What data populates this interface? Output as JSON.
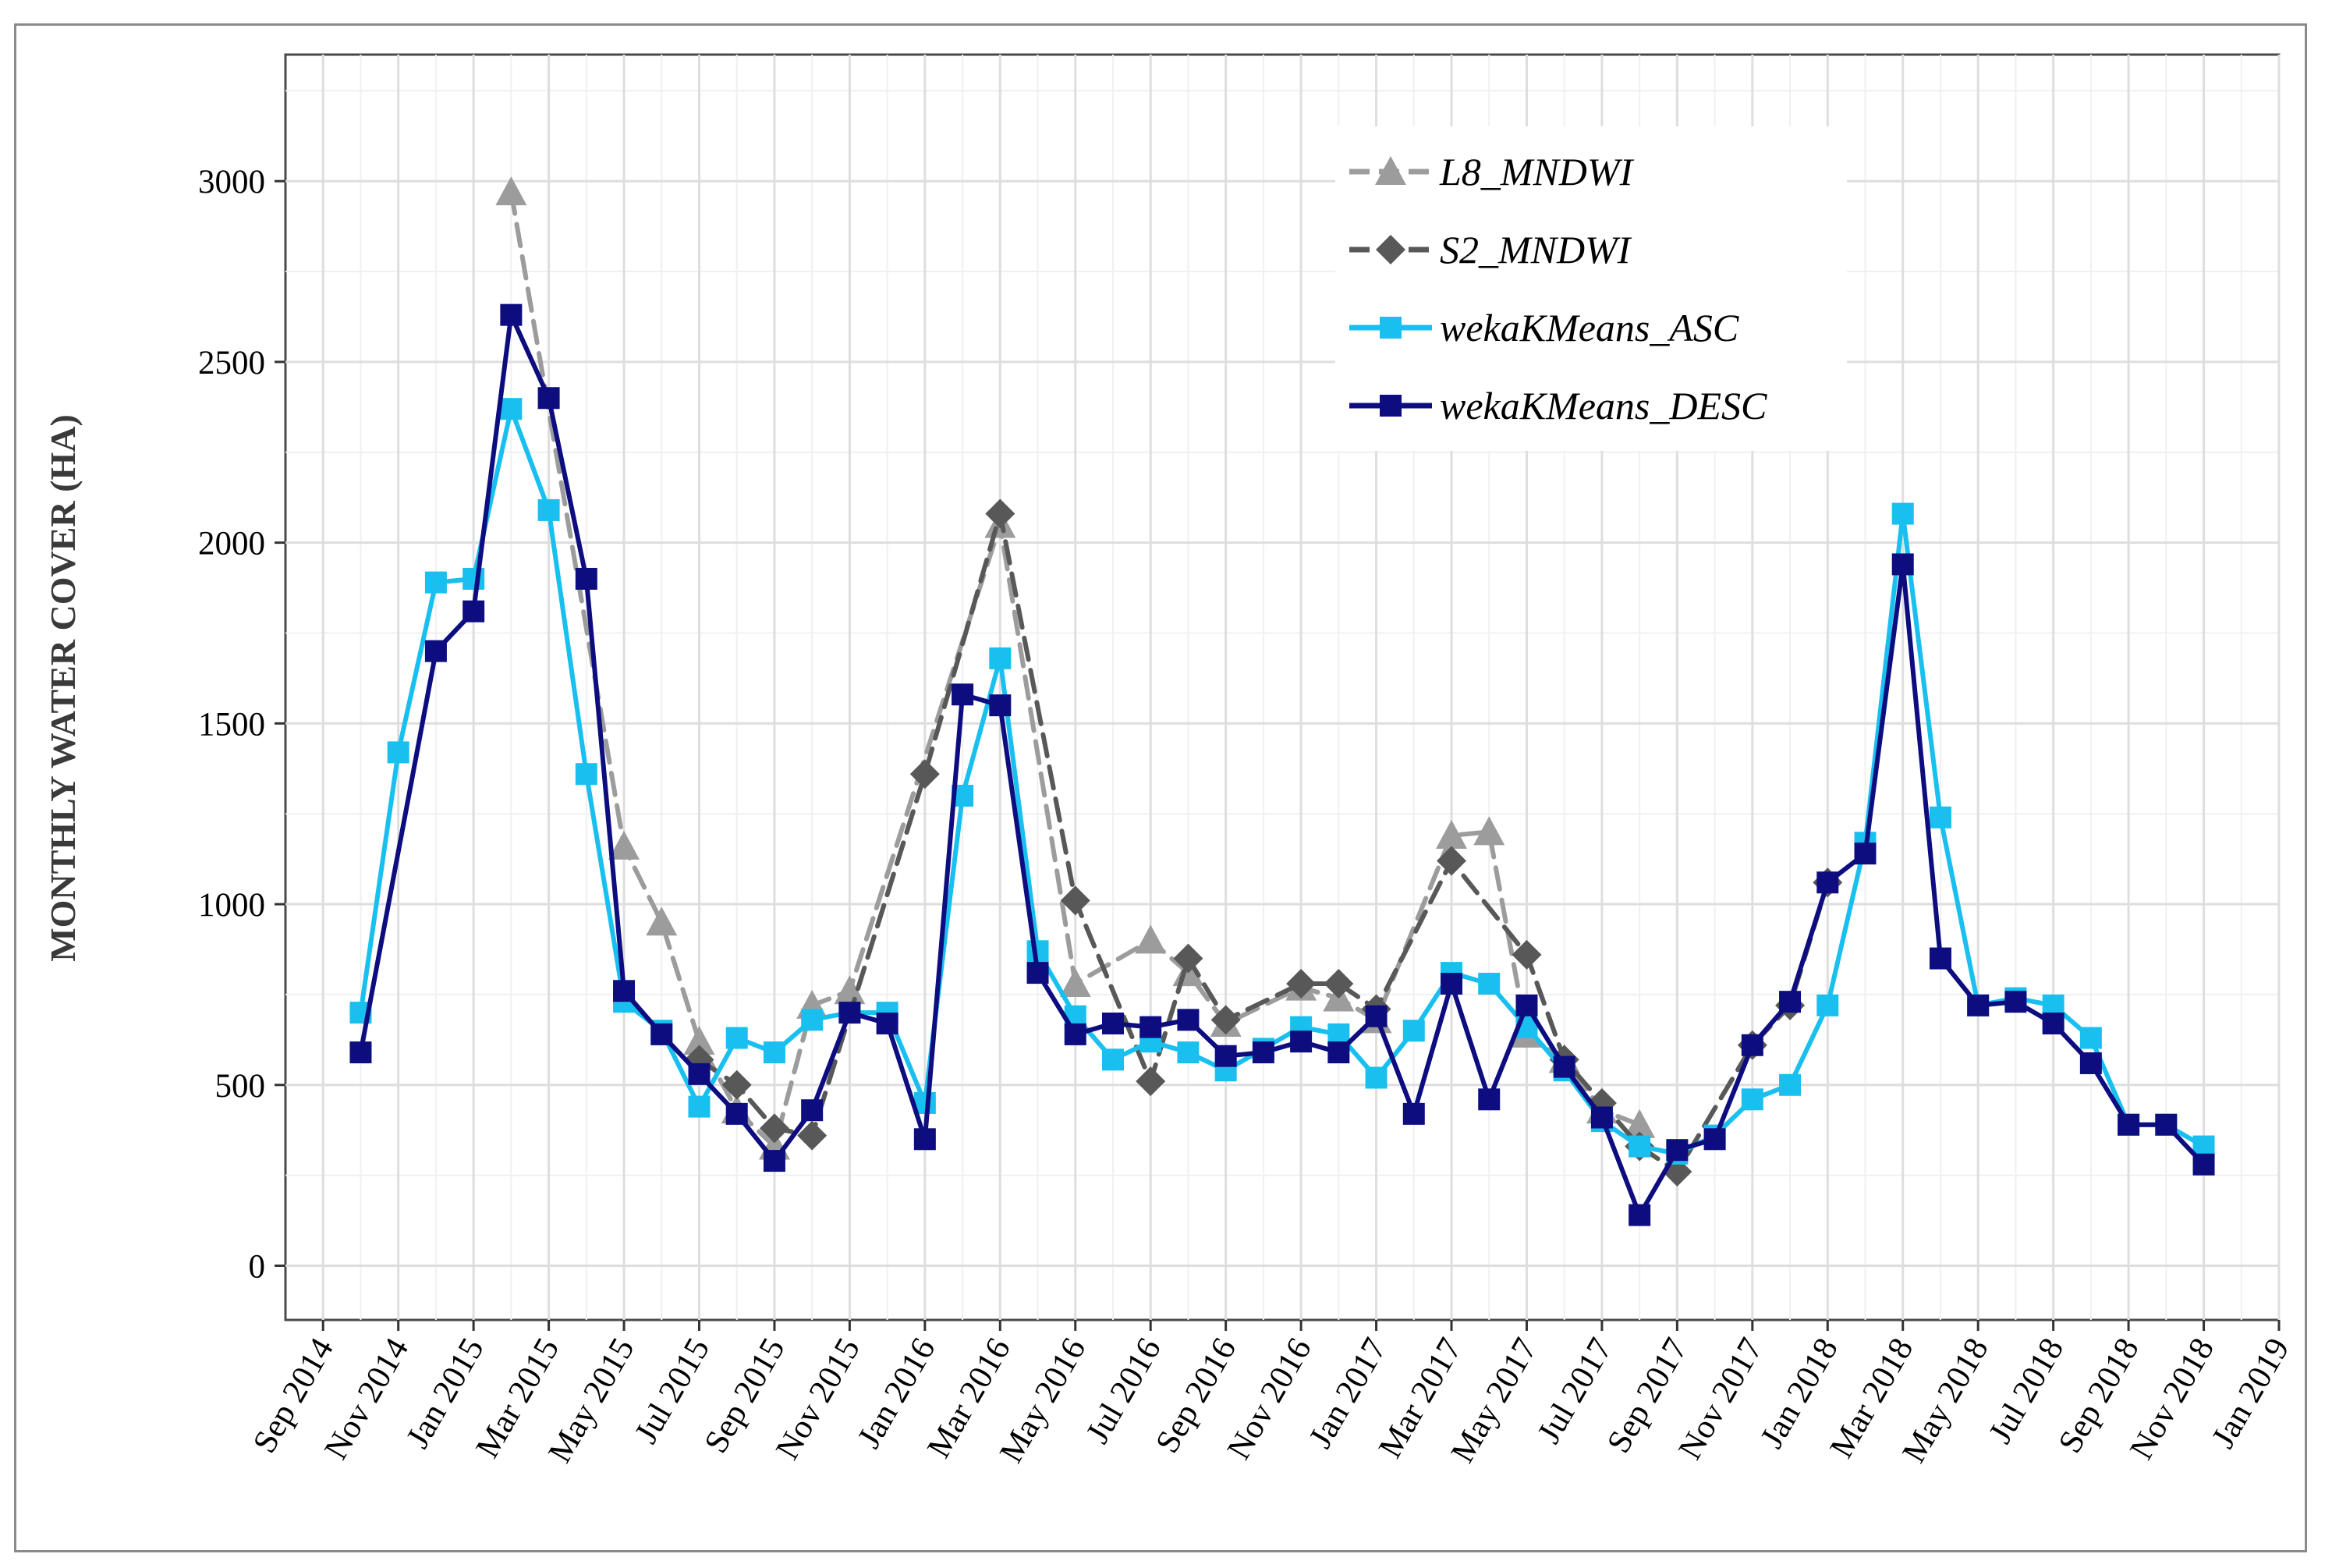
{
  "chart_data": {
    "type": "line",
    "title": "",
    "xlabel": "",
    "ylabel": "MONTHLY WATER COVER (HA)",
    "ylim": [
      -150,
      3350
    ],
    "xlim": [
      "Aug 2014",
      "Jan 2019"
    ],
    "y_ticks": [
      0,
      500,
      1000,
      1500,
      2000,
      2500,
      3000
    ],
    "y_tick_labels": [
      "0",
      "500",
      "1000",
      "1500",
      "2000",
      "2500",
      "3000"
    ],
    "x_tick_labels": [
      "Sep 2014",
      "Nov 2014",
      "Jan 2015",
      "Mar 2015",
      "May 2015",
      "Jul 2015",
      "Sep 2015",
      "Nov 2015",
      "Jan 2016",
      "Mar 2016",
      "May 2016",
      "Jul 2016",
      "Sep 2016",
      "Nov 2016",
      "Jan 2017",
      "Mar 2017",
      "May 2017",
      "Jul 2017",
      "Sep 2017",
      "Nov 2017",
      "Jan 2018",
      "Mar 2018",
      "May 2018",
      "Jul 2018",
      "Sep 2018",
      "Nov 2018",
      "Jan 2019"
    ],
    "legend_position": "top-right",
    "grid": true,
    "series": [
      {
        "name": "L8_MNDWI",
        "color": "#9c9c9c",
        "marker": "triangle",
        "dashed": true,
        "points": [
          [
            "2015-02",
            2970
          ],
          [
            "2015-05",
            1160
          ],
          [
            "2015-06",
            950
          ],
          [
            "2015-07",
            620
          ],
          [
            "2015-08",
            430
          ],
          [
            "2015-09",
            330
          ],
          [
            "2015-10",
            720
          ],
          [
            "2015-11",
            760
          ],
          [
            "2016-03",
            2050
          ],
          [
            "2016-05",
            780
          ],
          [
            "2016-07",
            900
          ],
          [
            "2016-08",
            810
          ],
          [
            "2016-09",
            670
          ],
          [
            "2016-11",
            770
          ],
          [
            "2016-12",
            740
          ],
          [
            "2017-01",
            680
          ],
          [
            "2017-03",
            1190
          ],
          [
            "2017-04",
            1200
          ],
          [
            "2017-05",
            640
          ],
          [
            "2017-06",
            570
          ],
          [
            "2017-07",
            430
          ],
          [
            "2017-08",
            390
          ]
        ]
      },
      {
        "name": "S2_MNDWI",
        "color": "#585858",
        "marker": "diamond",
        "dashed": true,
        "points": [
          [
            "2015-07",
            570
          ],
          [
            "2015-08",
            500
          ],
          [
            "2015-09",
            380
          ],
          [
            "2015-10",
            360
          ],
          [
            "2016-01",
            1360
          ],
          [
            "2016-03",
            2080
          ],
          [
            "2016-05",
            1010
          ],
          [
            "2016-07",
            510
          ],
          [
            "2016-08",
            850
          ],
          [
            "2016-09",
            680
          ],
          [
            "2016-11",
            780
          ],
          [
            "2016-12",
            780
          ],
          [
            "2017-01",
            710
          ],
          [
            "2017-03",
            1120
          ],
          [
            "2017-05",
            860
          ],
          [
            "2017-06",
            570
          ],
          [
            "2017-07",
            450
          ],
          [
            "2017-08",
            330
          ],
          [
            "2017-09",
            260
          ],
          [
            "2017-11",
            610
          ],
          [
            "2017-12",
            720
          ],
          [
            "2018-01",
            1060
          ]
        ]
      },
      {
        "name": "wekaKMeans_ASC",
        "color": "#19c0ef",
        "marker": "square",
        "dashed": false,
        "points": [
          [
            "2014-10",
            700
          ],
          [
            "2014-11",
            1420
          ],
          [
            "2014-12",
            1890
          ],
          [
            "2015-01",
            1900
          ],
          [
            "2015-02",
            2370
          ],
          [
            "2015-03",
            2090
          ],
          [
            "2015-04",
            1360
          ],
          [
            "2015-05",
            730
          ],
          [
            "2015-06",
            650
          ],
          [
            "2015-07",
            440
          ],
          [
            "2015-08",
            630
          ],
          [
            "2015-09",
            590
          ],
          [
            "2015-10",
            680
          ],
          [
            "2015-11",
            700
          ],
          [
            "2015-12",
            700
          ],
          [
            "2016-01",
            450
          ],
          [
            "2016-02",
            1300
          ],
          [
            "2016-03",
            1680
          ],
          [
            "2016-04",
            870
          ],
          [
            "2016-05",
            690
          ],
          [
            "2016-06",
            570
          ],
          [
            "2016-07",
            620
          ],
          [
            "2016-08",
            590
          ],
          [
            "2016-09",
            540
          ],
          [
            "2016-10",
            600
          ],
          [
            "2016-11",
            660
          ],
          [
            "2016-12",
            640
          ],
          [
            "2017-01",
            520
          ],
          [
            "2017-02",
            650
          ],
          [
            "2017-03",
            810
          ],
          [
            "2017-04",
            780
          ],
          [
            "2017-05",
            660
          ],
          [
            "2017-06",
            540
          ],
          [
            "2017-07",
            400
          ],
          [
            "2017-08",
            330
          ],
          [
            "2017-09",
            310
          ],
          [
            "2017-10",
            360
          ],
          [
            "2017-11",
            460
          ],
          [
            "2017-12",
            500
          ],
          [
            "2018-01",
            720
          ],
          [
            "2018-02",
            1170
          ],
          [
            "2018-03",
            2080
          ],
          [
            "2018-04",
            1240
          ],
          [
            "2018-05",
            720
          ],
          [
            "2018-06",
            740
          ],
          [
            "2018-07",
            720
          ],
          [
            "2018-08",
            630
          ],
          [
            "2018-09",
            390
          ],
          [
            "2018-10",
            390
          ],
          [
            "2018-11",
            330
          ]
        ]
      },
      {
        "name": "wekaKMeans_DESC",
        "color": "#0d0d80",
        "marker": "square",
        "dashed": false,
        "points": [
          [
            "2014-10",
            590
          ],
          [
            "2014-12",
            1700
          ],
          [
            "2015-01",
            1810
          ],
          [
            "2015-02",
            2630
          ],
          [
            "2015-03",
            2400
          ],
          [
            "2015-04",
            1900
          ],
          [
            "2015-05",
            760
          ],
          [
            "2015-06",
            640
          ],
          [
            "2015-07",
            530
          ],
          [
            "2015-08",
            420
          ],
          [
            "2015-09",
            290
          ],
          [
            "2015-10",
            430
          ],
          [
            "2015-11",
            700
          ],
          [
            "2015-12",
            670
          ],
          [
            "2016-01",
            350
          ],
          [
            "2016-02",
            1580
          ],
          [
            "2016-03",
            1550
          ],
          [
            "2016-04",
            810
          ],
          [
            "2016-05",
            640
          ],
          [
            "2016-06",
            670
          ],
          [
            "2016-07",
            660
          ],
          [
            "2016-08",
            680
          ],
          [
            "2016-09",
            580
          ],
          [
            "2016-10",
            590
          ],
          [
            "2016-11",
            620
          ],
          [
            "2016-12",
            590
          ],
          [
            "2017-01",
            690
          ],
          [
            "2017-02",
            420
          ],
          [
            "2017-03",
            780
          ],
          [
            "2017-04",
            460
          ],
          [
            "2017-05",
            720
          ],
          [
            "2017-06",
            550
          ],
          [
            "2017-07",
            410
          ],
          [
            "2017-08",
            140
          ],
          [
            "2017-09",
            320
          ],
          [
            "2017-10",
            350
          ],
          [
            "2017-11",
            610
          ],
          [
            "2017-12",
            730
          ],
          [
            "2018-01",
            1060
          ],
          [
            "2018-02",
            1140
          ],
          [
            "2018-03",
            1940
          ],
          [
            "2018-04",
            850
          ],
          [
            "2018-05",
            720
          ],
          [
            "2018-06",
            730
          ],
          [
            "2018-07",
            670
          ],
          [
            "2018-08",
            560
          ],
          [
            "2018-09",
            390
          ],
          [
            "2018-10",
            390
          ],
          [
            "2018-11",
            280
          ]
        ]
      }
    ]
  }
}
